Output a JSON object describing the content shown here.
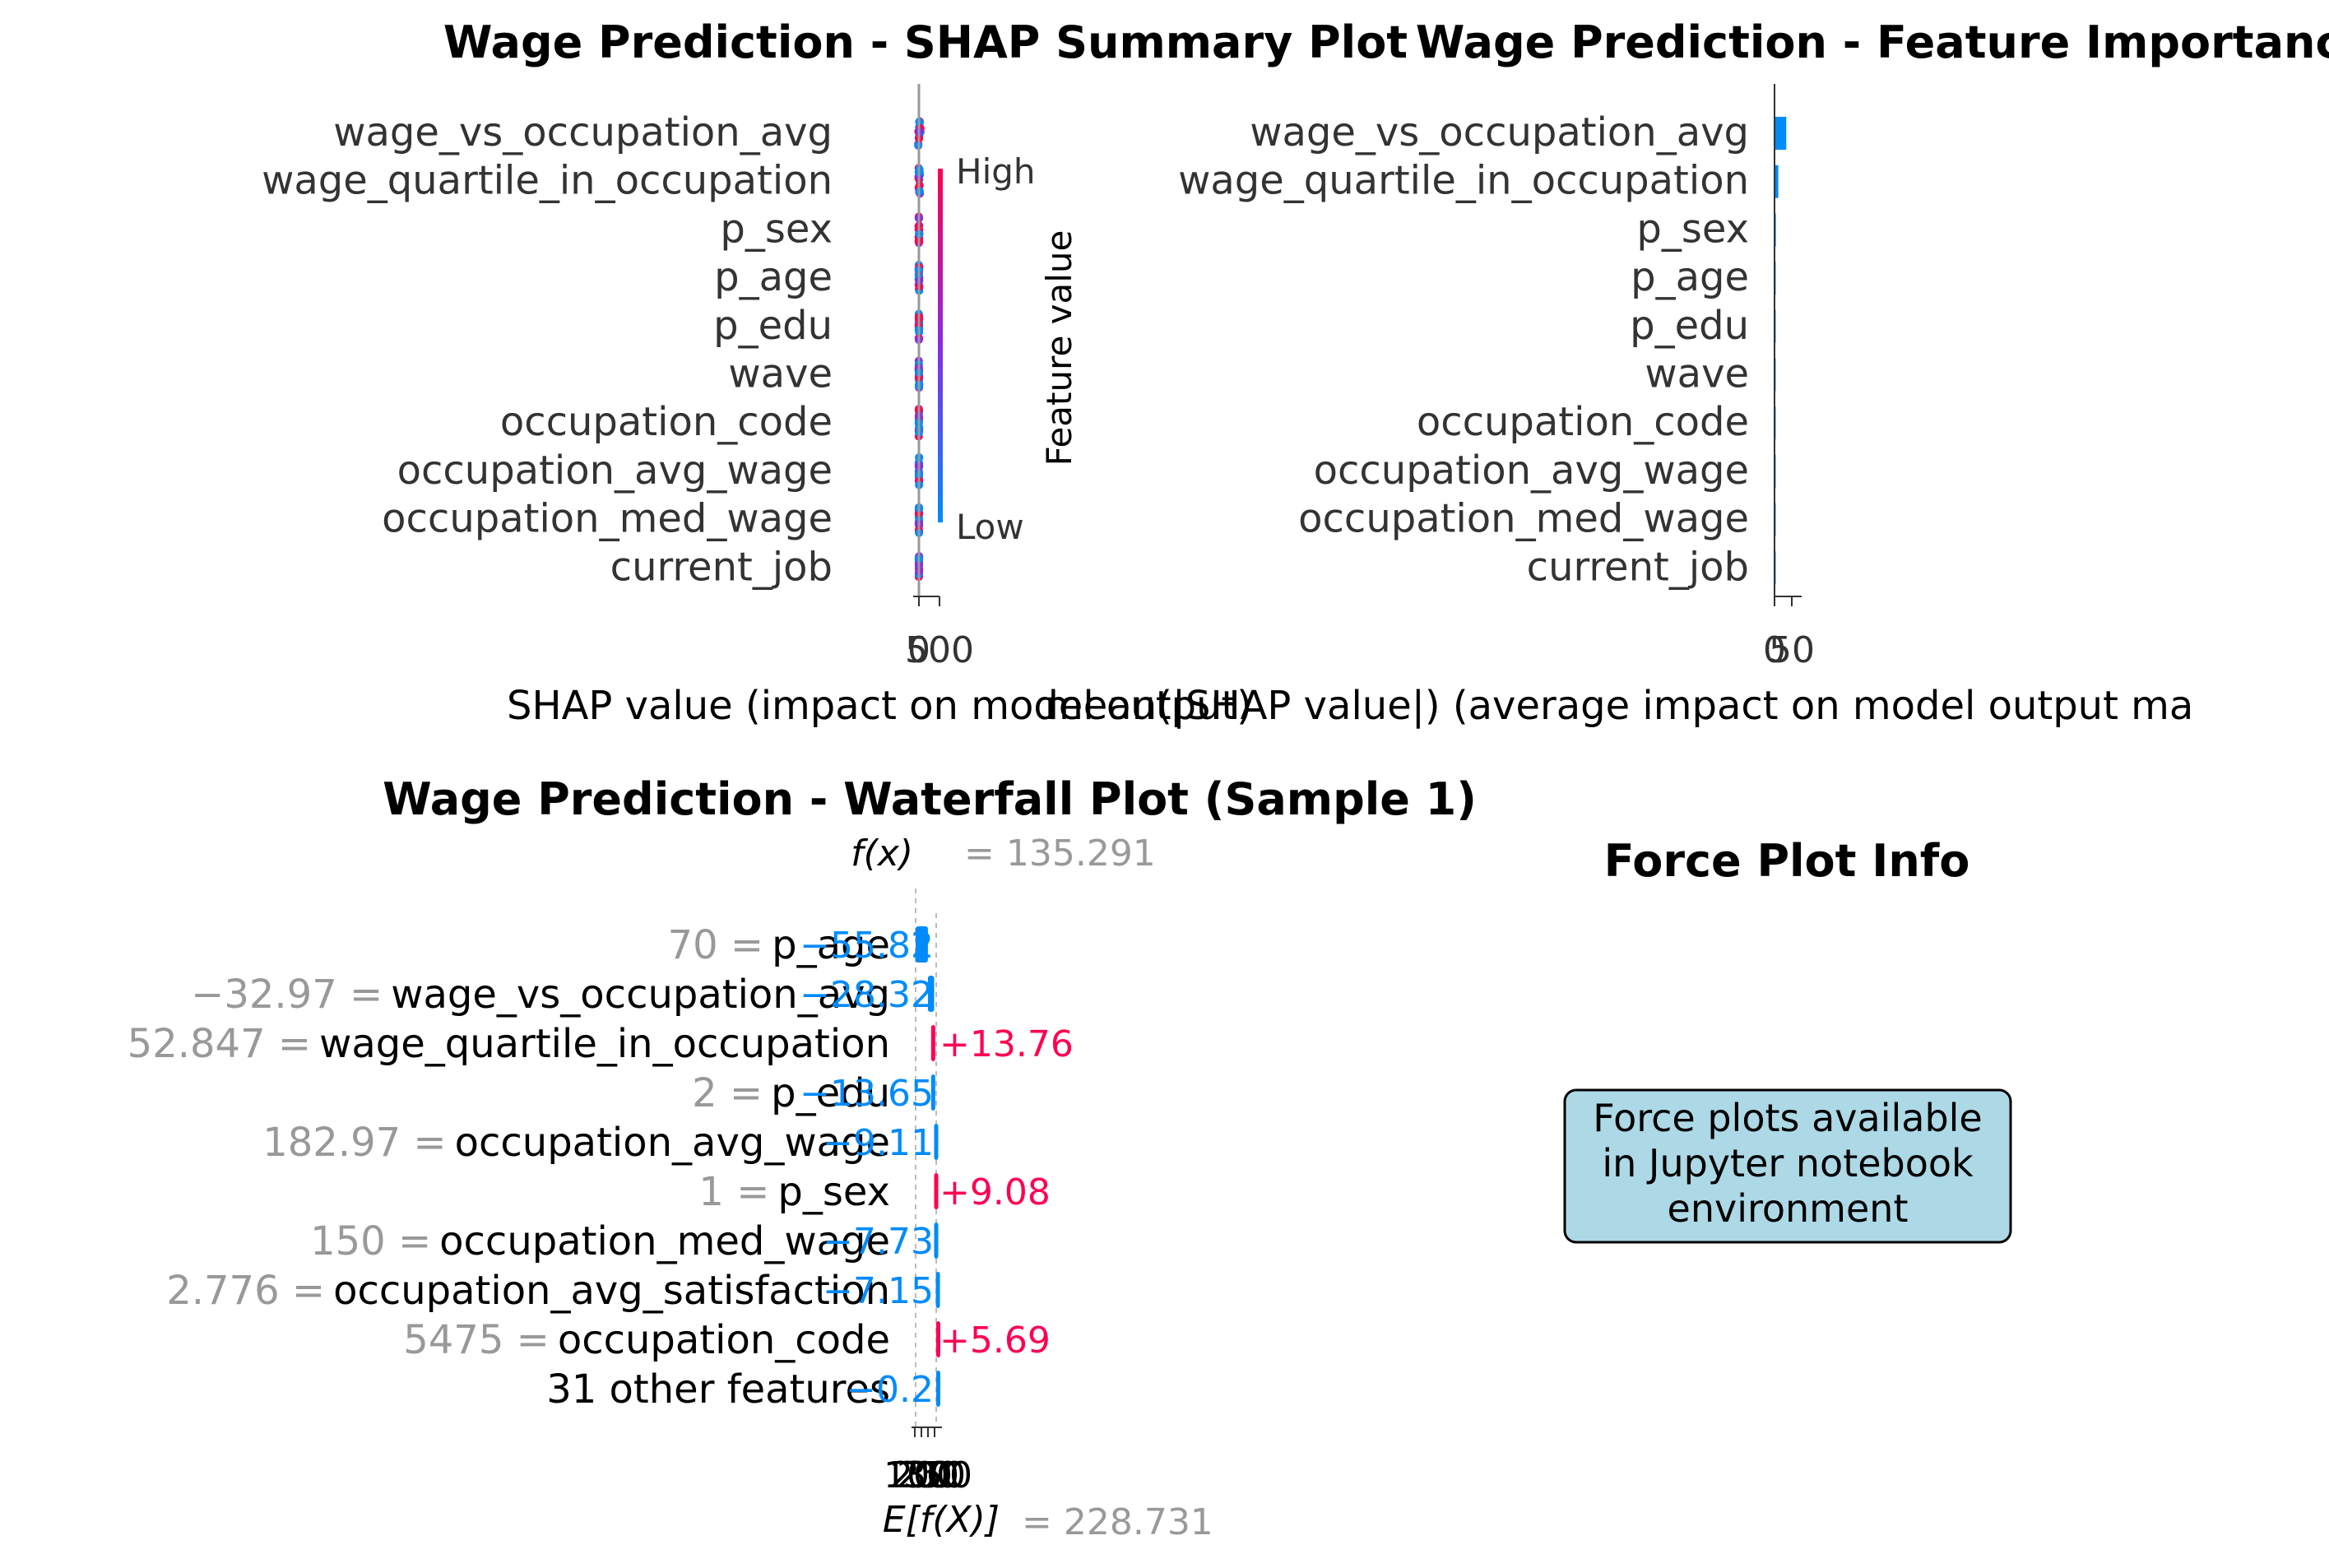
{
  "colors": {
    "blue": "#008bfb",
    "red": "#ff0051",
    "purple": "#8a2be2",
    "label_gray": "#999999",
    "axis": "#333333",
    "zero_line": "#999999",
    "force_box_fill": "#add8e6"
  },
  "chart_data": [
    {
      "type": "scatter",
      "title": "Wage Prediction - SHAP Summary Plot",
      "xlabel": "SHAP value (impact on model output)",
      "ylabel": "",
      "features": [
        "wage_vs_occupation_avg",
        "wage_quartile_in_occupation",
        "p_sex",
        "p_age",
        "p_edu",
        "wave",
        "occupation_code",
        "occupation_avg_wage",
        "occupation_med_wage",
        "current_job"
      ],
      "xticks": [
        "0",
        "500"
      ],
      "xlim": [
        -20,
        600
      ],
      "colorbar": {
        "label": "Feature value",
        "high": "High",
        "low": "Low"
      },
      "spread": [
        [
          -20,
          40
        ],
        [
          -10,
          25
        ],
        [
          -8,
          8
        ],
        [
          -8,
          8
        ],
        [
          -6,
          6
        ],
        [
          -6,
          6
        ],
        [
          -5,
          5
        ],
        [
          -5,
          5
        ],
        [
          -5,
          5
        ],
        [
          -4,
          4
        ]
      ]
    },
    {
      "type": "bar",
      "title": "Wage Prediction - Feature Importance",
      "xlabel": "mean(|SHAP value|) (average impact on model output ma",
      "categories": [
        "wage_vs_occupation_avg",
        "wage_quartile_in_occupation",
        "p_sex",
        "p_age",
        "p_edu",
        "wave",
        "occupation_code",
        "occupation_avg_wage",
        "occupation_med_wage",
        "current_job"
      ],
      "values": [
        34,
        11,
        4,
        3,
        2.5,
        2,
        1.5,
        1.2,
        1,
        0.8
      ],
      "xticks": [
        "0",
        "50"
      ],
      "xlim": [
        0,
        60
      ]
    },
    {
      "type": "bar",
      "subtype": "waterfall",
      "title": "Wage Prediction - Waterfall Plot (Sample 1)",
      "fx_label": "f(x)",
      "fx_value": "= 135.291",
      "efx_label": "E[f(X)]",
      "efx_value": "= 228.731",
      "xticks": [
        "100",
        "200",
        "250",
        "300"
      ],
      "rows": [
        {
          "value_text": "70",
          "feature": "p_age",
          "shap": -55.82,
          "shap_label": "−55.82"
        },
        {
          "value_text": "−32.97",
          "feature": "wage_vs_occupation_avg",
          "shap": -28.32,
          "shap_label": "−28.32"
        },
        {
          "value_text": "52.847",
          "feature": "wage_quartile_in_occupation",
          "shap": 13.76,
          "shap_label": "+13.76"
        },
        {
          "value_text": "2",
          "feature": "p_edu",
          "shap": -13.65,
          "shap_label": "−13.65"
        },
        {
          "value_text": "182.97",
          "feature": "occupation_avg_wage",
          "shap": -9.11,
          "shap_label": "−9.11"
        },
        {
          "value_text": "1",
          "feature": "p_sex",
          "shap": 9.08,
          "shap_label": "+9.08"
        },
        {
          "value_text": "150",
          "feature": "occupation_med_wage",
          "shap": -7.73,
          "shap_label": "−7.73"
        },
        {
          "value_text": "2.776",
          "feature": "occupation_avg_satisfaction",
          "shap": -7.15,
          "shap_label": "−7.15"
        },
        {
          "value_text": "5475",
          "feature": "occupation_code",
          "shap": 5.69,
          "shap_label": "+5.69"
        },
        {
          "value_text": "",
          "feature": "31 other features",
          "shap": -0.2,
          "shap_label": "−0.2"
        }
      ]
    }
  ],
  "force_panel": {
    "title": "Force Plot Info",
    "lines": [
      "Force plots available",
      "in Jupyter notebook",
      "environment"
    ]
  }
}
